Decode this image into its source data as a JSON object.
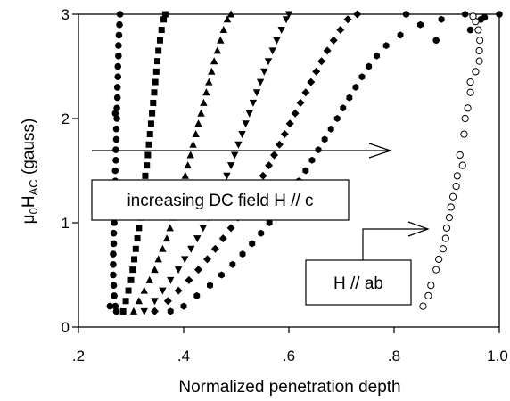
{
  "chart_data": {
    "type": "scatter",
    "title": "",
    "xlabel": "Normalized penetration depth",
    "ylabel": {
      "base": "μ",
      "sub0": "0",
      "mid": "H",
      "sub1": "AC",
      "unit": " (gauss)"
    },
    "xlim": [
      0.2,
      1.0
    ],
    "ylim": [
      0,
      3
    ],
    "xticks": [
      ".2",
      ".4",
      ".6",
      ".8",
      "1.0"
    ],
    "xtick_values": [
      0.2,
      0.4,
      0.6,
      0.8,
      1.0
    ],
    "yticks": [
      "0",
      "1",
      "2",
      "3"
    ],
    "ytick_values": [
      0,
      1,
      2,
      3
    ],
    "grid": false,
    "annotations": {
      "dc_field": "increasing DC field H // c",
      "ab": "H // ab"
    },
    "series": [
      {
        "marker": "circle",
        "points": [
          [
            0.27,
            0.2
          ],
          [
            0.268,
            0.3
          ],
          [
            0.267,
            0.4
          ],
          [
            0.266,
            0.5
          ],
          [
            0.266,
            0.6
          ],
          [
            0.266,
            0.7
          ],
          [
            0.267,
            0.8
          ],
          [
            0.267,
            0.9
          ],
          [
            0.268,
            1.0
          ],
          [
            0.268,
            1.1
          ],
          [
            0.269,
            1.2
          ],
          [
            0.269,
            1.3
          ],
          [
            0.27,
            1.4
          ],
          [
            0.27,
            1.5
          ],
          [
            0.271,
            1.6
          ],
          [
            0.271,
            1.7
          ],
          [
            0.272,
            1.8
          ],
          [
            0.272,
            1.9
          ],
          [
            0.273,
            2.0
          ],
          [
            0.273,
            2.1
          ],
          [
            0.274,
            2.2
          ],
          [
            0.274,
            2.3
          ],
          [
            0.275,
            2.4
          ],
          [
            0.275,
            2.5
          ],
          [
            0.276,
            2.6
          ],
          [
            0.276,
            2.7
          ],
          [
            0.277,
            2.8
          ],
          [
            0.278,
            2.9
          ],
          [
            0.279,
            3.0
          ],
          [
            0.26,
            0.2
          ],
          [
            0.272,
            0.15
          ],
          [
            0.266,
            1.05
          ],
          [
            0.27,
            2.05
          ]
        ]
      },
      {
        "marker": "square",
        "points": [
          [
            0.285,
            0.15
          ],
          [
            0.29,
            0.25
          ],
          [
            0.295,
            0.35
          ],
          [
            0.3,
            0.45
          ],
          [
            0.303,
            0.55
          ],
          [
            0.306,
            0.65
          ],
          [
            0.309,
            0.75
          ],
          [
            0.312,
            0.85
          ],
          [
            0.315,
            0.95
          ],
          [
            0.318,
            1.05
          ],
          [
            0.32,
            1.15
          ],
          [
            0.323,
            1.25
          ],
          [
            0.325,
            1.35
          ],
          [
            0.327,
            1.45
          ],
          [
            0.33,
            1.55
          ],
          [
            0.332,
            1.65
          ],
          [
            0.334,
            1.75
          ],
          [
            0.336,
            1.85
          ],
          [
            0.338,
            1.95
          ],
          [
            0.34,
            2.05
          ],
          [
            0.342,
            2.15
          ],
          [
            0.344,
            2.25
          ],
          [
            0.346,
            2.35
          ],
          [
            0.348,
            2.45
          ],
          [
            0.35,
            2.55
          ],
          [
            0.352,
            2.65
          ],
          [
            0.355,
            2.75
          ],
          [
            0.358,
            2.85
          ],
          [
            0.362,
            2.95
          ],
          [
            0.365,
            3.0
          ]
        ]
      },
      {
        "marker": "triangle-up",
        "points": [
          [
            0.305,
            0.15
          ],
          [
            0.315,
            0.25
          ],
          [
            0.325,
            0.35
          ],
          [
            0.335,
            0.45
          ],
          [
            0.345,
            0.55
          ],
          [
            0.352,
            0.65
          ],
          [
            0.36,
            0.75
          ],
          [
            0.368,
            0.85
          ],
          [
            0.374,
            0.95
          ],
          [
            0.381,
            1.05
          ],
          [
            0.387,
            1.15
          ],
          [
            0.393,
            1.25
          ],
          [
            0.398,
            1.35
          ],
          [
            0.403,
            1.45
          ],
          [
            0.408,
            1.55
          ],
          [
            0.413,
            1.65
          ],
          [
            0.418,
            1.75
          ],
          [
            0.423,
            1.85
          ],
          [
            0.428,
            1.95
          ],
          [
            0.433,
            2.05
          ],
          [
            0.438,
            2.15
          ],
          [
            0.443,
            2.25
          ],
          [
            0.448,
            2.35
          ],
          [
            0.453,
            2.45
          ],
          [
            0.458,
            2.55
          ],
          [
            0.464,
            2.65
          ],
          [
            0.47,
            2.75
          ],
          [
            0.476,
            2.85
          ],
          [
            0.483,
            2.95
          ],
          [
            0.49,
            3.0
          ]
        ]
      },
      {
        "marker": "triangle-down",
        "points": [
          [
            0.325,
            0.15
          ],
          [
            0.345,
            0.25
          ],
          [
            0.36,
            0.35
          ],
          [
            0.375,
            0.45
          ],
          [
            0.39,
            0.55
          ],
          [
            0.402,
            0.65
          ],
          [
            0.414,
            0.75
          ],
          [
            0.426,
            0.85
          ],
          [
            0.437,
            0.95
          ],
          [
            0.447,
            1.05
          ],
          [
            0.457,
            1.15
          ],
          [
            0.466,
            1.25
          ],
          [
            0.474,
            1.35
          ],
          [
            0.482,
            1.45
          ],
          [
            0.49,
            1.55
          ],
          [
            0.497,
            1.65
          ],
          [
            0.504,
            1.75
          ],
          [
            0.511,
            1.85
          ],
          [
            0.518,
            1.95
          ],
          [
            0.525,
            2.05
          ],
          [
            0.532,
            2.15
          ],
          [
            0.539,
            2.25
          ],
          [
            0.546,
            2.35
          ],
          [
            0.553,
            2.45
          ],
          [
            0.561,
            2.55
          ],
          [
            0.569,
            2.65
          ],
          [
            0.577,
            2.75
          ],
          [
            0.586,
            2.85
          ],
          [
            0.595,
            2.95
          ],
          [
            0.6,
            3.0
          ]
        ]
      },
      {
        "marker": "diamond",
        "points": [
          [
            0.345,
            0.15
          ],
          [
            0.37,
            0.25
          ],
          [
            0.39,
            0.35
          ],
          [
            0.41,
            0.45
          ],
          [
            0.428,
            0.55
          ],
          [
            0.445,
            0.65
          ],
          [
            0.46,
            0.75
          ],
          [
            0.475,
            0.85
          ],
          [
            0.49,
            0.95
          ],
          [
            0.503,
            1.05
          ],
          [
            0.516,
            1.15
          ],
          [
            0.528,
            1.25
          ],
          [
            0.54,
            1.35
          ],
          [
            0.551,
            1.45
          ],
          [
            0.562,
            1.55
          ],
          [
            0.572,
            1.65
          ],
          [
            0.582,
            1.75
          ],
          [
            0.592,
            1.85
          ],
          [
            0.602,
            1.95
          ],
          [
            0.612,
            2.05
          ],
          [
            0.622,
            2.15
          ],
          [
            0.632,
            2.25
          ],
          [
            0.642,
            2.35
          ],
          [
            0.652,
            2.45
          ],
          [
            0.662,
            2.55
          ],
          [
            0.673,
            2.65
          ],
          [
            0.685,
            2.75
          ],
          [
            0.698,
            2.85
          ],
          [
            0.712,
            2.95
          ],
          [
            0.73,
            3.0
          ]
        ]
      },
      {
        "marker": "hexagon",
        "points": [
          [
            0.375,
            0.15
          ],
          [
            0.4,
            0.2
          ],
          [
            0.425,
            0.3
          ],
          [
            0.45,
            0.4
          ],
          [
            0.472,
            0.5
          ],
          [
            0.493,
            0.6
          ],
          [
            0.512,
            0.7
          ],
          [
            0.53,
            0.8
          ],
          [
            0.547,
            0.9
          ],
          [
            0.563,
            1.0
          ],
          [
            0.578,
            1.1
          ],
          [
            0.592,
            1.2
          ],
          [
            0.606,
            1.3
          ],
          [
            0.619,
            1.4
          ],
          [
            0.632,
            1.5
          ],
          [
            0.644,
            1.6
          ],
          [
            0.656,
            1.7
          ],
          [
            0.668,
            1.8
          ],
          [
            0.68,
            1.9
          ],
          [
            0.692,
            2.0
          ],
          [
            0.703,
            2.1
          ],
          [
            0.715,
            2.2
          ],
          [
            0.727,
            2.3
          ],
          [
            0.739,
            2.4
          ],
          [
            0.752,
            2.5
          ],
          [
            0.767,
            2.6
          ],
          [
            0.785,
            2.7
          ],
          [
            0.812,
            2.8
          ],
          [
            0.85,
            2.9
          ],
          [
            0.89,
            2.95
          ],
          [
            0.935,
            3.0
          ]
        ]
      },
      {
        "marker": "circle-filled",
        "points": [
          [
            0.823,
            3.0
          ],
          [
            0.965,
            2.95
          ],
          [
            0.945,
            2.85
          ],
          [
            0.88,
            2.75
          ],
          [
            1.0,
            3.0
          ],
          [
            0.972,
            2.97
          ]
        ]
      },
      {
        "marker": "circle-open",
        "points": [
          [
            0.855,
            0.2
          ],
          [
            0.865,
            0.3
          ],
          [
            0.87,
            0.4
          ],
          [
            0.88,
            0.55
          ],
          [
            0.885,
            0.65
          ],
          [
            0.893,
            0.75
          ],
          [
            0.898,
            0.85
          ],
          [
            0.9,
            0.95
          ],
          [
            0.905,
            1.05
          ],
          [
            0.908,
            1.15
          ],
          [
            0.912,
            1.25
          ],
          [
            0.918,
            1.35
          ],
          [
            0.92,
            1.45
          ],
          [
            0.93,
            1.55
          ],
          [
            0.925,
            1.65
          ],
          [
            0.933,
            1.85
          ],
          [
            0.935,
            2.0
          ],
          [
            0.94,
            2.1
          ],
          [
            0.945,
            2.25
          ],
          [
            0.945,
            2.35
          ],
          [
            0.955,
            2.45
          ],
          [
            0.962,
            2.55
          ],
          [
            0.962,
            2.65
          ],
          [
            0.963,
            2.75
          ],
          [
            0.96,
            2.85
          ],
          [
            0.955,
            2.93
          ],
          [
            0.95,
            2.98
          ]
        ]
      }
    ]
  }
}
